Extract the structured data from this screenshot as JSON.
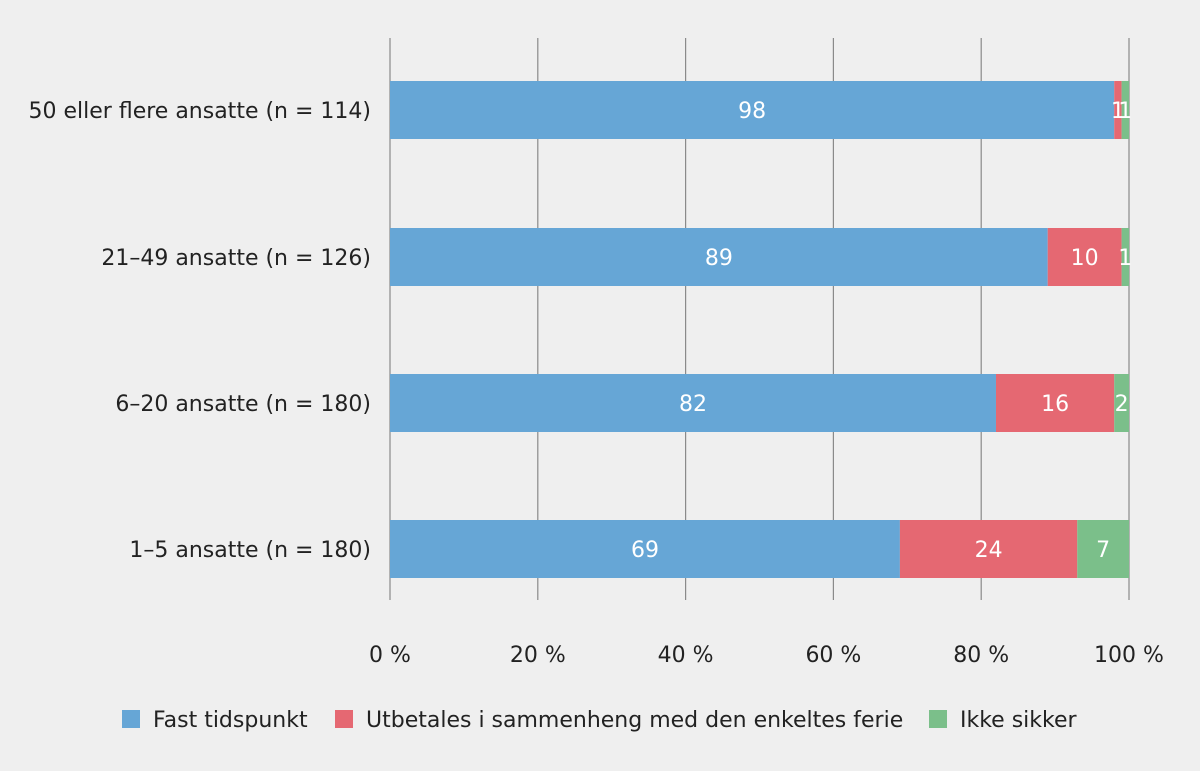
{
  "chart_data": {
    "type": "bar",
    "orientation": "horizontal",
    "stacked": true,
    "categories": [
      "50 eller flere ansatte (n = 114)",
      "21–49 ansatte (n = 126)",
      "6–20 ansatte (n = 180)",
      "1–5 ansatte (n = 180)"
    ],
    "series": [
      {
        "name": "Fast tidspunkt",
        "color": "#66a6d6",
        "values": [
          98,
          89,
          82,
          69
        ]
      },
      {
        "name": "Utbetales i sammenheng med den enkeltes ferie",
        "color": "#e56872",
        "values": [
          1,
          10,
          16,
          24
        ]
      },
      {
        "name": "Ikke sikker",
        "color": "#7bbf8a",
        "values": [
          1,
          1,
          2,
          7
        ]
      }
    ],
    "xlim": [
      0,
      100
    ],
    "xticks": [
      0,
      20,
      40,
      60,
      80,
      100
    ],
    "xtick_labels": [
      "0 %",
      "20 %",
      "40 %",
      "60 %",
      "80 %",
      "100 %"
    ],
    "grid": "vertical",
    "legend_position": "bottom",
    "title": "",
    "xlabel": "",
    "ylabel": ""
  }
}
